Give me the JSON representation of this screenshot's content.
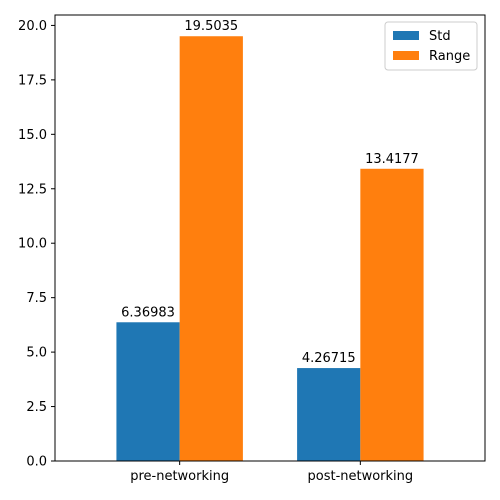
{
  "chart_data": {
    "type": "bar",
    "title": "",
    "xlabel": "",
    "ylabel": "",
    "categories": [
      "pre-networking",
      "post-networking"
    ],
    "series": [
      {
        "name": "Std",
        "values": [
          6.36983,
          4.26715
        ],
        "labels": [
          "6.36983",
          "4.26715"
        ],
        "color": "#1f77b4"
      },
      {
        "name": "Range",
        "values": [
          19.5035,
          13.4177
        ],
        "labels": [
          "19.5035",
          "13.4177"
        ],
        "color": "#ff7f0e"
      }
    ],
    "ylim": [
      0,
      20.4787
    ],
    "yticks": [
      "0.0",
      "2.5",
      "5.0",
      "7.5",
      "10.0",
      "12.5",
      "15.0",
      "17.5",
      "20.0"
    ],
    "grid": false,
    "legend_position": "top-right"
  }
}
